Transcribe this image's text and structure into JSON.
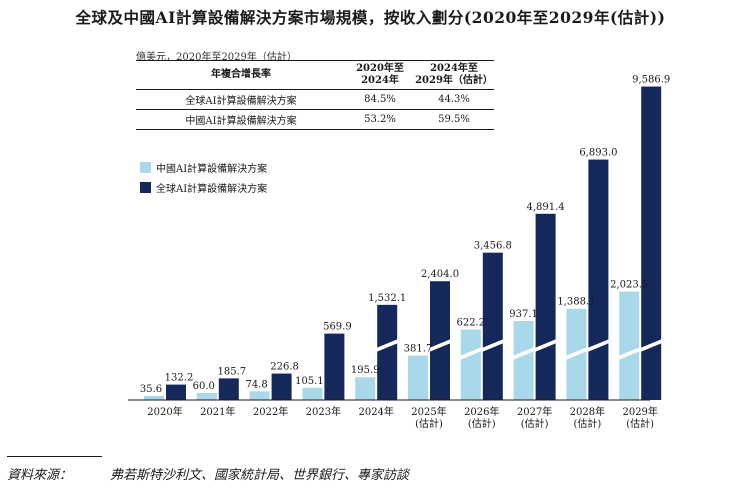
{
  "title": "全球及中國AI計算設備解決方案市場規模，按收入劃分(2020年至2029年(估計))",
  "unit_note": "億美元，2020年至2029年（估計）",
  "cagr_table": {
    "header": [
      "年複合增長率",
      "2020年至\n2024年",
      "2024年至\n2029年（估計）"
    ],
    "rows": [
      [
        "全球AI計算設備解決方案",
        "84.5%",
        "44.3%"
      ],
      [
        "中國AI計算設備解決方案",
        "53.2%",
        "59.5%"
      ]
    ]
  },
  "colors": {
    "china": "#a9d8ea",
    "global": "#14295a"
  },
  "source": {
    "label": "資料來源：",
    "text": "弗若斯特沙利文、國家統計局、世界銀行、專家訪談"
  },
  "chart_data": {
    "type": "bar",
    "categories": [
      "2020年",
      "2021年",
      "2022年",
      "2023年",
      "2024年",
      "2025年\n(估計)",
      "2026年\n(估計)",
      "2027年\n(估計)",
      "2028年\n(估計)",
      "2029年\n(估計)"
    ],
    "series": [
      {
        "name": "中國AI計算設備解決方案",
        "values": [
          35.6,
          60.0,
          74.8,
          105.1,
          195.9,
          381.7,
          622.2,
          937.1,
          1388.1,
          2023.5
        ],
        "labels": [
          "35.6",
          "60.0",
          "74.8",
          "105.1",
          "195.9",
          "381.7",
          "622.2",
          "937.1",
          "1,388.1",
          "2,023.5"
        ]
      },
      {
        "name": "全球AI計算設備解決方案",
        "values": [
          132.2,
          185.7,
          226.8,
          569.9,
          1532.1,
          2404.0,
          3456.8,
          4891.4,
          6893.0,
          9586.9
        ],
        "labels": [
          "132.2",
          "185.7",
          "226.8",
          "569.9",
          "1,532.1",
          "2,404.0",
          "3,456.8",
          "4,891.4",
          "6,893.0",
          "9,586.9"
        ]
      }
    ],
    "broken_axis": true
  }
}
